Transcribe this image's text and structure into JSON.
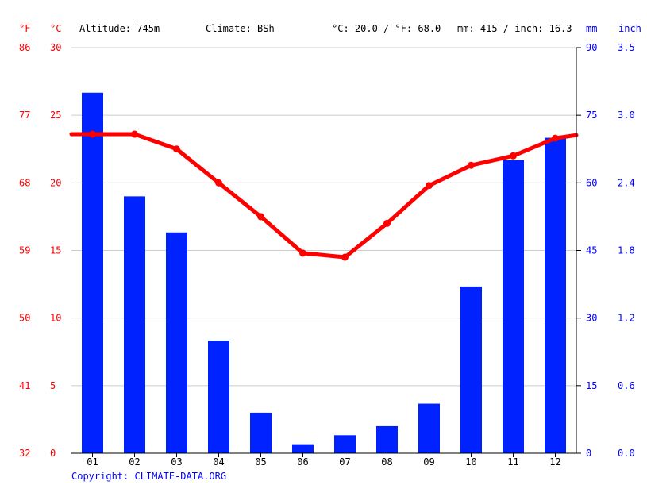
{
  "header": {
    "unit_f": "°F",
    "unit_c": "°C",
    "altitude": "Altitude: 745m",
    "climate": "Climate: BSh",
    "temp_summary": "°C: 20.0 / °F: 68.0",
    "precip_summary": "mm: 415 / inch: 16.3",
    "unit_mm": "mm",
    "unit_inch": "inch"
  },
  "copyright": "Copyright: CLIMATE-DATA.ORG",
  "colors": {
    "temperature": "#ff0000",
    "precipitation": "#0022ff",
    "grid": "#cccccc"
  },
  "chart_data": {
    "type": "bar",
    "categories": [
      "01",
      "02",
      "03",
      "04",
      "05",
      "06",
      "07",
      "08",
      "09",
      "10",
      "11",
      "12"
    ],
    "series": [
      {
        "type": "bar",
        "axis": "right",
        "unit": "mm",
        "values": [
          80,
          57,
          49,
          25,
          9,
          2,
          4,
          6,
          11,
          37,
          65,
          70
        ]
      },
      {
        "type": "line",
        "axis": "left",
        "unit": "°C",
        "values": [
          23.6,
          23.6,
          22.5,
          20.0,
          17.5,
          14.8,
          14.5,
          17.0,
          19.8,
          21.3,
          22.0,
          23.3
        ]
      }
    ],
    "ylim_left_c": [
      0,
      30
    ],
    "ylim_right_mm": [
      0,
      90
    ],
    "left_ticks_c": [
      "0",
      "5",
      "10",
      "15",
      "20",
      "25",
      "30"
    ],
    "left_ticks_f": [
      "32",
      "41",
      "50",
      "59",
      "68",
      "77",
      "86"
    ],
    "right_ticks_mm": [
      "0",
      "15",
      "30",
      "45",
      "60",
      "75",
      "90"
    ],
    "right_ticks_inch": [
      "0.0",
      "0.6",
      "1.2",
      "1.8",
      "2.4",
      "3.0",
      "3.5"
    ],
    "grid": true
  }
}
